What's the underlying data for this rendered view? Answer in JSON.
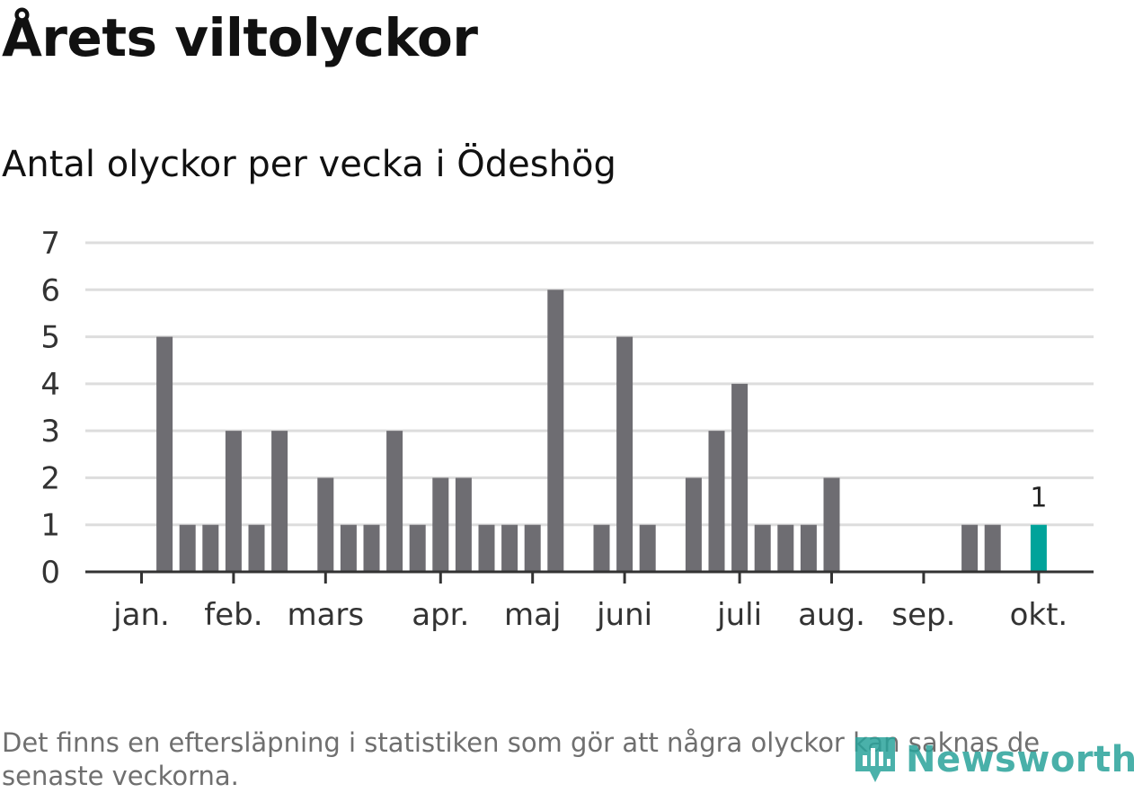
{
  "header": {
    "title": "Årets viltolyckor",
    "subtitle": "Antal olyckor per vecka i Ödeshög"
  },
  "footer": {
    "note": "Det finns en eftersläpning i statistiken som gör att några olyckor kan saknas de senaste veckorna.",
    "brand": "Newsworthy"
  },
  "colors": {
    "bar": "#6e6d72",
    "highlight": "#00a39a",
    "grid": "#dddddd",
    "axis": "#333333",
    "brand": "#2aa39b"
  },
  "chart_data": {
    "type": "bar",
    "title": "Antal olyckor per vecka i Ödeshög",
    "xlabel": "",
    "ylabel": "",
    "ylim": [
      0,
      7
    ],
    "yticks": [
      0,
      1,
      2,
      3,
      4,
      5,
      6,
      7
    ],
    "grid": true,
    "weeks": [
      1,
      2,
      3,
      4,
      5,
      6,
      7,
      8,
      9,
      10,
      11,
      12,
      13,
      14,
      15,
      16,
      17,
      18,
      19,
      20,
      21,
      22,
      23,
      24,
      25,
      26,
      27,
      28,
      29,
      30,
      31,
      32,
      33,
      34,
      35,
      36,
      37,
      38,
      39,
      40,
      41
    ],
    "values": [
      0,
      5,
      1,
      1,
      3,
      1,
      3,
      0,
      2,
      1,
      1,
      3,
      1,
      2,
      2,
      1,
      1,
      1,
      6,
      0,
      1,
      5,
      1,
      0,
      2,
      3,
      4,
      1,
      1,
      1,
      2,
      0,
      0,
      0,
      0,
      0,
      1,
      1,
      0,
      1,
      0
    ],
    "highlight_week": 40,
    "highlight_label": "1",
    "month_ticks": [
      {
        "label": "jan.",
        "week": 1
      },
      {
        "label": "feb.",
        "week": 5
      },
      {
        "label": "mars",
        "week": 9
      },
      {
        "label": "apr.",
        "week": 14
      },
      {
        "label": "maj",
        "week": 18
      },
      {
        "label": "juni",
        "week": 22
      },
      {
        "label": "juli",
        "week": 27
      },
      {
        "label": "aug.",
        "week": 31
      },
      {
        "label": "sep.",
        "week": 35
      },
      {
        "label": "okt.",
        "week": 40
      }
    ]
  }
}
